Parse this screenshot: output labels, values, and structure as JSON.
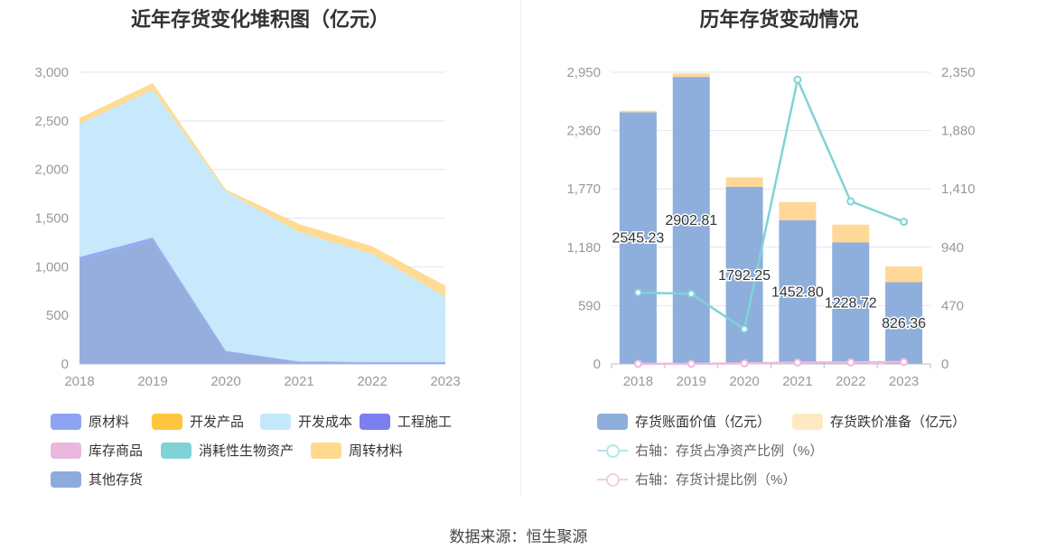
{
  "chart_data": [
    {
      "type": "area",
      "stacked": true,
      "title": "近年存货变化堆积图（亿元）",
      "categories": [
        "2018",
        "2019",
        "2020",
        "2021",
        "2022",
        "2023"
      ],
      "yticks": [
        "0",
        "500",
        "1,000",
        "1,500",
        "2,000",
        "2,500",
        "3,000"
      ],
      "ylim": [
        0,
        3000
      ],
      "grid": true,
      "legend_position": "bottom",
      "series": [
        {
          "name": "其他存货",
          "color": "#8faadc",
          "values": [
            1070,
            1270,
            130,
            20,
            15,
            15
          ]
        },
        {
          "name": "原材料",
          "color": "#8da4f5",
          "values": [
            30,
            30,
            5,
            5,
            5,
            5
          ]
        },
        {
          "name": "开发产品",
          "color": "#ffc53d",
          "values": [
            0,
            0,
            0,
            0,
            0,
            0
          ]
        },
        {
          "name": "开发成本",
          "color": "#c4e8fb",
          "values": [
            1370,
            1520,
            1640,
            1330,
            1110,
            670
          ]
        },
        {
          "name": "工程施工",
          "color": "#7b7ff0",
          "values": [
            0,
            0,
            0,
            0,
            0,
            0
          ]
        },
        {
          "name": "库存商品",
          "color": "#e9b8dc",
          "values": [
            0,
            0,
            0,
            0,
            0,
            0
          ]
        },
        {
          "name": "消耗性生物资产",
          "color": "#7fd3d6",
          "values": [
            0,
            0,
            0,
            0,
            0,
            0
          ]
        },
        {
          "name": "周转材料",
          "color": "#ffd98e",
          "values": [
            60,
            70,
            20,
            85,
            80,
            115
          ]
        }
      ],
      "legend_order": [
        "原材料",
        "开发产品",
        "开发成本",
        "工程施工",
        "库存商品",
        "消耗性生物资产",
        "周转材料",
        "其他存货"
      ]
    },
    {
      "type": "bar",
      "stacked": true,
      "title": "历年存货变动情况",
      "categories": [
        "2018",
        "2019",
        "2020",
        "2021",
        "2022",
        "2023"
      ],
      "yticks_left": [
        "0",
        "590",
        "1,180",
        "1,770",
        "2,360",
        "2,950"
      ],
      "ylim_left": [
        0,
        2950
      ],
      "yticks_right": [
        "0",
        "470",
        "940",
        "1,410",
        "1,880",
        "2,350"
      ],
      "ylim_right": [
        0,
        2350
      ],
      "grid": true,
      "legend_position": "bottom",
      "series": [
        {
          "name": "存货账面价值（亿元）",
          "color": "#8eaedc",
          "values": [
            2545.23,
            2902.81,
            1792.25,
            1452.8,
            1228.72,
            826.36
          ],
          "labels": [
            "2545.23",
            "2902.81",
            "1792.25",
            "1452.80",
            "1228.72",
            "826.36"
          ]
        },
        {
          "name": "存货跌价准备（亿元）",
          "color": "#ffd897",
          "values": [
            15,
            35,
            95,
            185,
            180,
            160
          ]
        }
      ],
      "line_series": [
        {
          "name": "右轴：存货占净资产比例（%）",
          "color": "#7fd3d6",
          "axis": "right",
          "values": [
            575,
            565,
            280,
            2290,
            1310,
            1145
          ]
        },
        {
          "name": "右轴：存货计提比例（%）",
          "color": "#f0b8de",
          "axis": "right",
          "values": [
            0.6,
            1.2,
            5.0,
            11.3,
            12.8,
            16.2
          ]
        }
      ]
    }
  ],
  "footer": {
    "source": "数据来源：恒生聚源"
  }
}
